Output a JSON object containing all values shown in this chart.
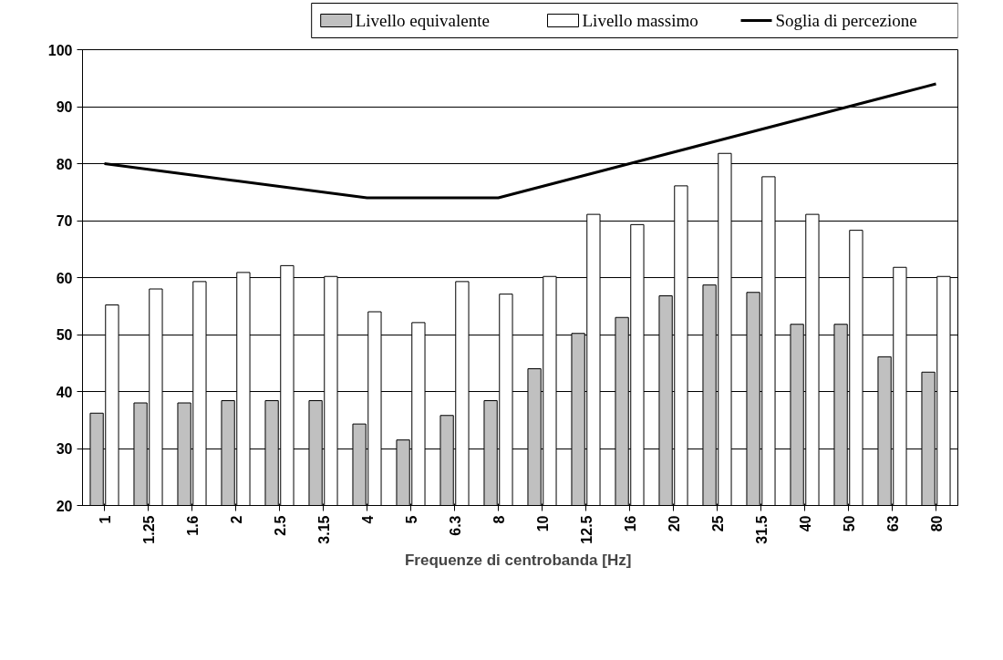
{
  "chart_data": {
    "type": "bar",
    "xlabel": "Frequenze di centrobanda  [Hz]",
    "categories": [
      "1",
      "1.25",
      "1.6",
      "2",
      "2.5",
      "3.15",
      "4",
      "5",
      "6.3",
      "8",
      "10",
      "12.5",
      "16",
      "20",
      "25",
      "31.5",
      "40",
      "50",
      "63",
      "80"
    ],
    "series": [
      {
        "name": "Livello equivalente",
        "color": "#c0c0c0",
        "values": [
          36.2,
          38,
          38,
          38.4,
          38.4,
          38.4,
          34.3,
          31.5,
          35.8,
          38.4,
          44,
          50.2,
          53,
          56.8,
          58.7,
          57.4,
          51.8,
          51.8,
          46.1,
          43.4
        ]
      },
      {
        "name": "Livello massimo",
        "color": "#ffffff",
        "values": [
          55.2,
          58,
          59.3,
          60.9,
          62.1,
          60.2,
          54,
          52.1,
          59.3,
          57.1,
          60.2,
          71.1,
          69.3,
          76.1,
          81.8,
          77.7,
          71.1,
          68.3,
          61.8,
          60.2
        ]
      },
      {
        "name": "Soglia di percezione",
        "type": "line",
        "color": "#000000",
        "values": [
          80,
          79,
          78,
          77,
          76,
          75,
          74,
          74,
          74,
          74,
          76,
          78,
          80,
          82,
          84,
          86,
          88,
          90,
          92,
          94
        ]
      }
    ],
    "ylim": [
      20,
      100
    ],
    "yticks": [
      20,
      30,
      40,
      50,
      60,
      70,
      80,
      90,
      100
    ],
    "grid": "y",
    "legend": "top"
  }
}
